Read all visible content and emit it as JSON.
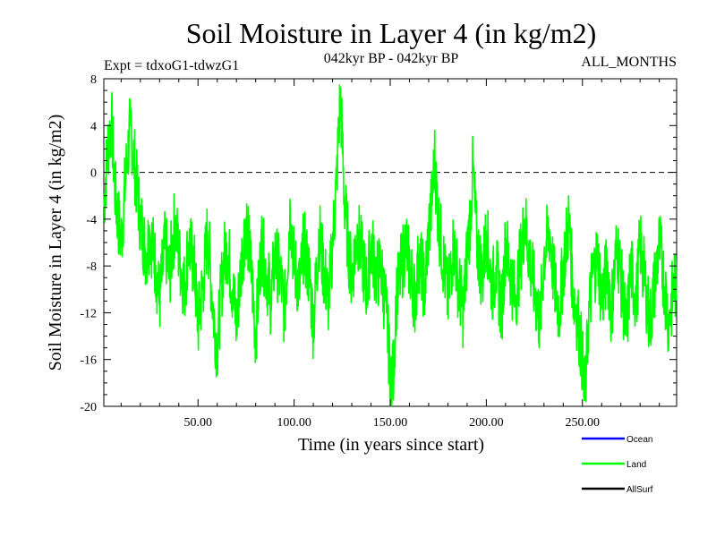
{
  "chart_data": {
    "type": "line",
    "title": "Soil Moisture in Layer 4 (in kg/m2)",
    "subtitle_left": "Expt = tdxoG1-tdwzG1",
    "subtitle_center": "042kyr BP - 042kyr BP",
    "subtitle_right": "ALL_MONTHS",
    "xlabel": "Time (in years since start)",
    "ylabel": "Soil Moisture in Layer 4 (in kg/m2)",
    "xlim": [
      1,
      299
    ],
    "ylim": [
      -20,
      8
    ],
    "x_ticks": [
      {
        "value": 50,
        "label": "50.00"
      },
      {
        "value": 100,
        "label": "100.00"
      },
      {
        "value": 150,
        "label": "150.00"
      },
      {
        "value": 200,
        "label": "200.00"
      },
      {
        "value": 250,
        "label": "250.00"
      }
    ],
    "y_ticks": [
      {
        "value": 8,
        "label": "8"
      },
      {
        "value": 4,
        "label": "4"
      },
      {
        "value": 0,
        "label": "0"
      },
      {
        "value": -4,
        "label": "-4"
      },
      {
        "value": -8,
        "label": "-8"
      },
      {
        "value": -12,
        "label": "-12"
      },
      {
        "value": -16,
        "label": "-16"
      },
      {
        "value": -20,
        "label": "-20"
      }
    ],
    "zero_line": 0,
    "series": [
      {
        "name": "Ocean",
        "color": "#0000ff",
        "values": []
      },
      {
        "name": "Land",
        "color": "#00ff00",
        "x": [
          1,
          3,
          5,
          7,
          10,
          13,
          15,
          18,
          20,
          23,
          25,
          28,
          30,
          33,
          35,
          38,
          40,
          43,
          45,
          48,
          50,
          53,
          55,
          58,
          60,
          63,
          65,
          68,
          70,
          73,
          75,
          78,
          80,
          83,
          85,
          88,
          90,
          93,
          95,
          98,
          100,
          103,
          105,
          108,
          110,
          113,
          115,
          118,
          120,
          122,
          124,
          125,
          126,
          128,
          130,
          133,
          135,
          138,
          140,
          143,
          145,
          148,
          150,
          151,
          152,
          153,
          155,
          158,
          160,
          163,
          165,
          168,
          170,
          172,
          173,
          175,
          178,
          180,
          183,
          185,
          188,
          190,
          192,
          193,
          195,
          198,
          200,
          203,
          205,
          208,
          210,
          213,
          215,
          218,
          220,
          223,
          225,
          228,
          230,
          233,
          235,
          238,
          240,
          243,
          245,
          248,
          250,
          251,
          252,
          253,
          255,
          258,
          260,
          263,
          265,
          268,
          270,
          273,
          275,
          278,
          280,
          283,
          285,
          288,
          290,
          293,
          295,
          298,
          299
        ],
        "values": [
          -3,
          2,
          4.5,
          -2,
          -6,
          1,
          4,
          -1,
          -4,
          -7,
          -5,
          -8,
          -11,
          -6,
          -9,
          -4,
          -7,
          -10,
          -6,
          -8,
          -13,
          -9,
          -5,
          -12,
          -15,
          -8,
          -6,
          -10,
          -13,
          -7,
          -4,
          -9,
          -14,
          -6,
          -8,
          -11,
          -7,
          -9,
          -12,
          -3,
          -8,
          -10,
          -6,
          -9,
          -13,
          -5,
          -8,
          -11,
          -6,
          -1,
          6.5,
          3,
          -2,
          -6,
          -9,
          -5,
          -7,
          -10,
          -6,
          -9,
          -8,
          -12,
          -17,
          -18,
          -16,
          -11,
          -9,
          -6,
          -8,
          -11,
          -7,
          -10,
          -5,
          -2,
          1.5,
          -4,
          -8,
          -11,
          -6,
          -9,
          -12,
          -7,
          -3,
          0.5,
          -6,
          -9,
          -5,
          -10,
          -8,
          -12,
          -6,
          -9,
          -11,
          -7,
          -4,
          -8,
          -10,
          -13,
          -7,
          -5,
          -9,
          -12,
          -8,
          -4,
          -10,
          -13,
          -16,
          -19.5,
          -17,
          -13,
          -9,
          -7,
          -11,
          -8,
          -12,
          -6,
          -9,
          -14,
          -8,
          -11,
          -6,
          -10,
          -13,
          -9,
          -6,
          -10,
          -13,
          -9,
          -11
        ]
      },
      {
        "name": "AllSurf",
        "color": "#000000",
        "values": []
      }
    ]
  }
}
